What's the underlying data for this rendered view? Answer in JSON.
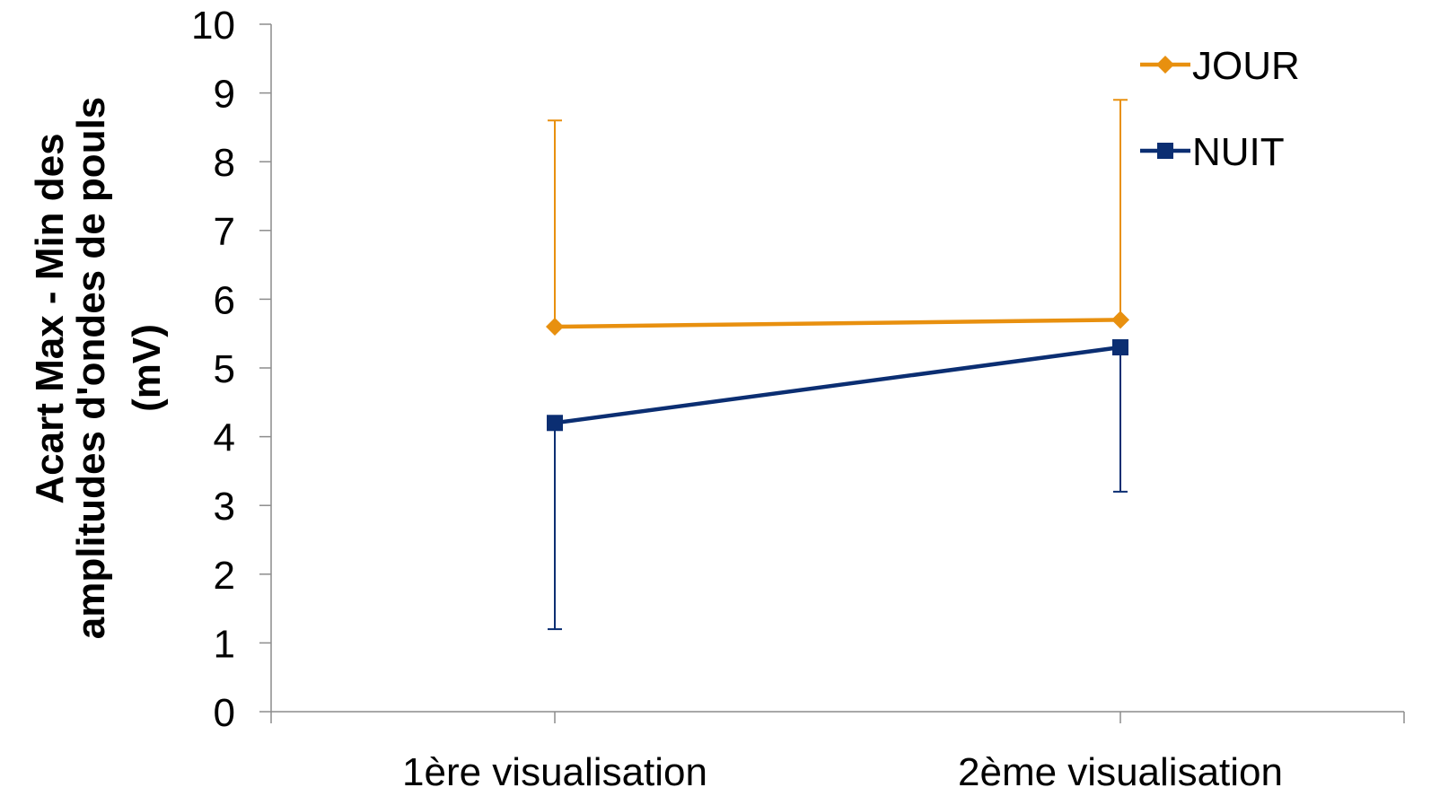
{
  "chart_data": {
    "type": "line",
    "categories": [
      "1ère visualisation",
      "2ème visualisation"
    ],
    "ylabel_lines": [
      "Acart Max - Min des",
      "amplitudes d'ondes de pouls",
      "(mV)"
    ],
    "xlabel": "",
    "ylim": [
      0,
      10
    ],
    "yticks": [
      "0",
      "1",
      "2",
      "3",
      "4",
      "5",
      "6",
      "7",
      "8",
      "9",
      "10"
    ],
    "grid": false,
    "legend_position": "top-right",
    "series": [
      {
        "name": "JOUR",
        "color": "#E8900F",
        "marker": "diamond",
        "values": [
          5.6,
          5.7
        ],
        "error_upper": [
          8.6,
          8.9
        ],
        "error_lower": [
          null,
          null
        ]
      },
      {
        "name": "NUIT",
        "color": "#0B2E72",
        "marker": "square",
        "values": [
          4.2,
          5.3
        ],
        "error_upper": [
          null,
          null
        ],
        "error_lower": [
          1.2,
          3.2
        ]
      }
    ]
  }
}
